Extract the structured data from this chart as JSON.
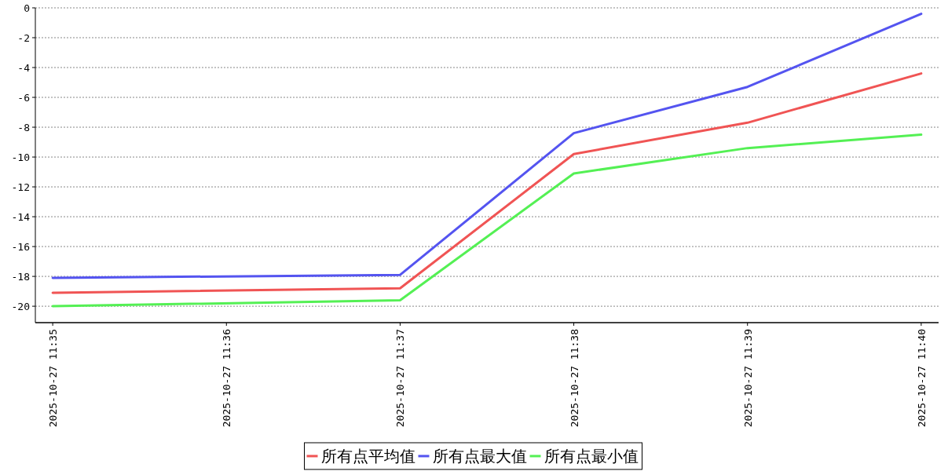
{
  "chart_data": {
    "type": "line",
    "x": [
      "2025-10-27T11:35",
      "2025-10-27T11:37",
      "2025-10-27T11:38",
      "2025-10-27T11:39",
      "2025-10-27T11:40"
    ],
    "series": [
      {
        "name": "所有点平均值",
        "color": "#f05454",
        "values": [
          -19.1,
          -18.8,
          -9.8,
          -7.7,
          -4.4
        ]
      },
      {
        "name": "所有点最大值",
        "color": "#5454f0",
        "values": [
          -18.1,
          -17.9,
          -8.4,
          -5.3,
          -0.4
        ]
      },
      {
        "name": "所有点最小值",
        "color": "#54f054",
        "values": [
          -20.0,
          -19.6,
          -11.1,
          -9.4,
          -8.5
        ]
      }
    ],
    "xlim": [
      "2025-10-27T11:34:54",
      "2025-10-27T11:40:06"
    ],
    "xticks": [
      {
        "value": "2025-10-27T11:35",
        "label": "2025-10-27 11:35"
      },
      {
        "value": "2025-10-27T11:36",
        "label": "2025-10-27 11:36"
      },
      {
        "value": "2025-10-27T11:37",
        "label": "2025-10-27 11:37"
      },
      {
        "value": "2025-10-27T11:38",
        "label": "2025-10-27 11:38"
      },
      {
        "value": "2025-10-27T11:39",
        "label": "2025-10-27 11:39"
      },
      {
        "value": "2025-10-27T11:40",
        "label": "2025-10-27 11:40"
      }
    ],
    "ylim": [
      -21.1,
      0
    ],
    "yticks": [
      -20,
      -18,
      -16,
      -14,
      -12,
      -10,
      -8,
      -6,
      -4,
      -2,
      0
    ],
    "grid": "y",
    "legend": "bottom"
  }
}
